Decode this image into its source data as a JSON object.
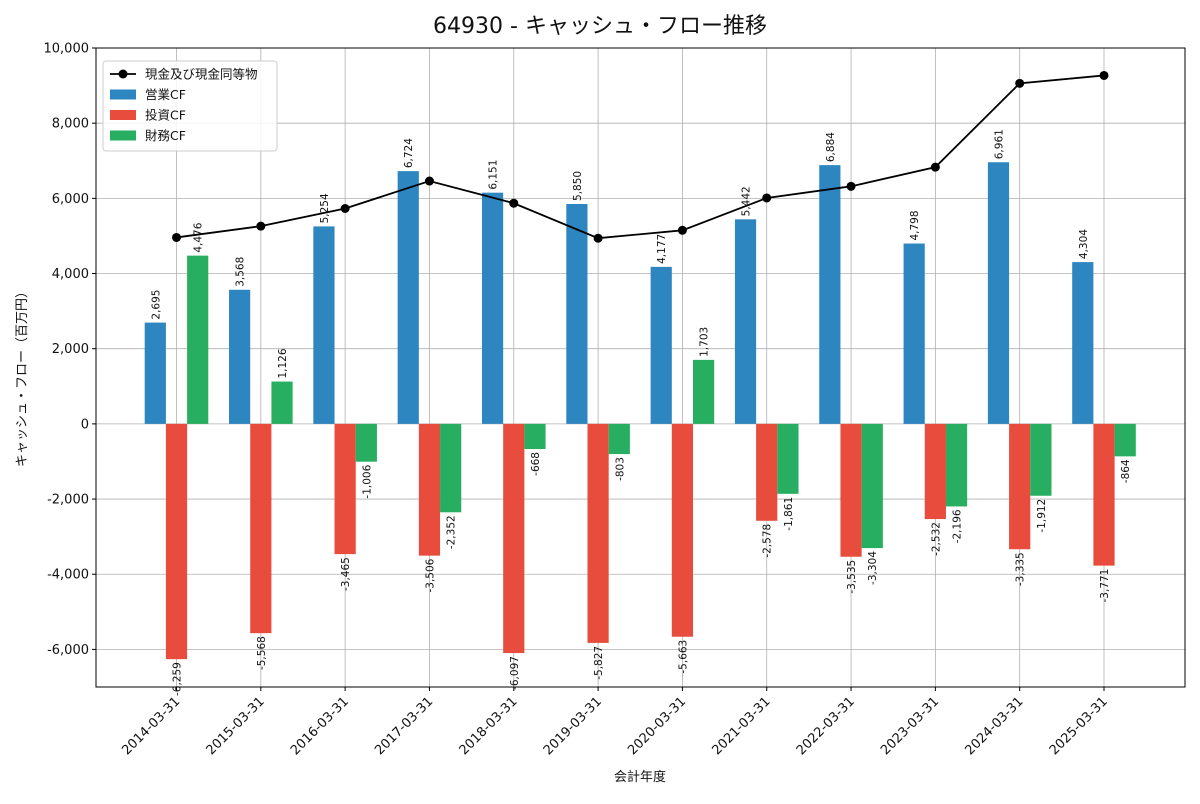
{
  "chart_data": {
    "type": "bar",
    "title": "64930 - キャッシュ・フロー推移",
    "xlabel": "会計年度",
    "ylabel": "キャッシュ・フロー（百万円）",
    "ylim": [
      -7000,
      10000
    ],
    "yticks": [
      -6000,
      -4000,
      -2000,
      0,
      2000,
      4000,
      6000,
      8000,
      10000
    ],
    "ytick_labels": [
      "-6,000",
      "-4,000",
      "-2,000",
      "0",
      "2,000",
      "4,000",
      "6,000",
      "8,000",
      "10,000"
    ],
    "grid": true,
    "legend_position": "top-left",
    "categories": [
      "2014-03-31",
      "2015-03-31",
      "2016-03-31",
      "2017-03-31",
      "2018-03-31",
      "2019-03-31",
      "2020-03-31",
      "2021-03-31",
      "2022-03-31",
      "2023-03-31",
      "2024-03-31",
      "2025-03-31"
    ],
    "series": [
      {
        "name": "営業CF",
        "kind": "bar",
        "color": "#2e86c1",
        "values": [
          2695,
          3568,
          5254,
          6724,
          6151,
          5850,
          4177,
          5442,
          6884,
          4798,
          6961,
          4304
        ],
        "labels": [
          "2,695",
          "3,568",
          "5,254",
          "6,724",
          "6,151",
          "5,850",
          "4,177",
          "5,442",
          "6,884",
          "4,798",
          "6,961",
          "4,304"
        ]
      },
      {
        "name": "投資CF",
        "kind": "bar",
        "color": "#e74c3c",
        "values": [
          -6259,
          -5568,
          -3465,
          -3506,
          -6097,
          -5827,
          -5663,
          -2578,
          -3535,
          -2532,
          -3335,
          -3771
        ],
        "labels": [
          "-6,259",
          "-5,568",
          "-3,465",
          "-3,506",
          "-6,097",
          "-5,827",
          "-5,663",
          "-2,578",
          "-3,535",
          "-2,532",
          "-3,335",
          "-3,771"
        ]
      },
      {
        "name": "財務CF",
        "kind": "bar",
        "color": "#27ae60",
        "values": [
          4476,
          1126,
          -1006,
          -2352,
          -668,
          -803,
          1703,
          -1861,
          -3304,
          -2196,
          -1912,
          -864
        ],
        "labels": [
          "4,476",
          "1,126",
          "-1,006",
          "-2,352",
          "-668",
          "-803",
          "1,703",
          "-1,861",
          "-3,304",
          "-2,196",
          "-1,912",
          "-864"
        ]
      },
      {
        "name": "現金及び現金同等物",
        "kind": "line",
        "color": "#000000",
        "values": [
          4960,
          5260,
          5730,
          6460,
          5870,
          4940,
          5150,
          6010,
          6320,
          6830,
          9060,
          9270
        ]
      }
    ]
  }
}
